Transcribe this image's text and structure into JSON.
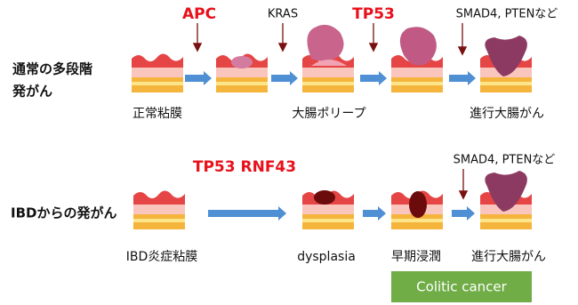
{
  "rows": [
    {
      "title": [
        "通常の多段階",
        "発がん"
      ],
      "genes": [
        "APC",
        "KRAS",
        "TP53",
        "SMAD4, PTENなど"
      ],
      "stages": [
        "正常粘膜",
        "大腸ポリープ",
        "進行大腸がん"
      ]
    },
    {
      "title": [
        "IBDからの発がん"
      ],
      "genes": [
        "TP53 RNF43",
        "SMAD4, PTENなど"
      ],
      "stages": [
        "IBD炎症粘膜",
        "dysplasia",
        "早期浸潤",
        "進行大腸がん"
      ]
    }
  ],
  "badge": "Colitic cancer"
}
